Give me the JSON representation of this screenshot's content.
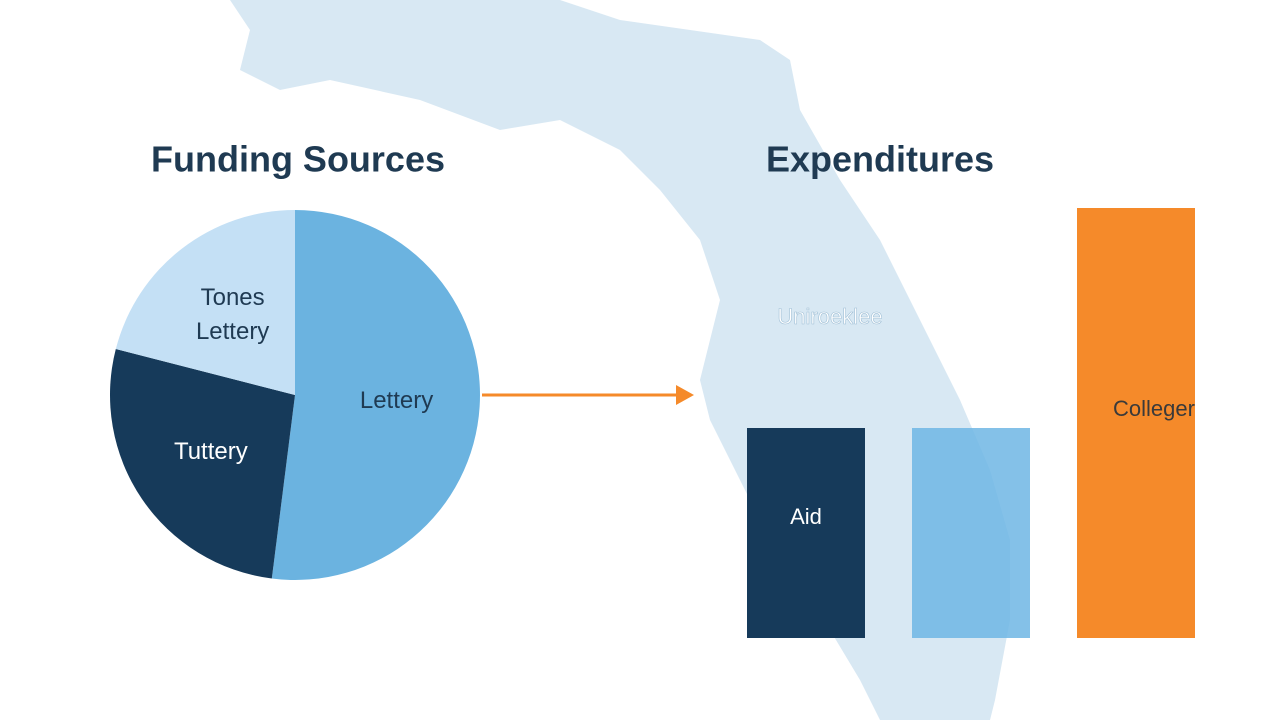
{
  "chart_data": [
    {
      "type": "pie",
      "title": "Funding Sources",
      "categories": [
        "Lettery",
        "Tuttery",
        "Tones Lettery"
      ],
      "values": [
        52,
        27,
        21
      ],
      "colors": [
        "#6bb3e0",
        "#163a5a",
        "#c4e0f5"
      ]
    },
    {
      "type": "bar",
      "title": "Expenditures",
      "categories": [
        "Aid",
        null,
        "Colleger"
      ],
      "values": [
        21,
        21,
        43
      ],
      "colors": [
        "#163a5a",
        "#6fb6e4",
        "#f58a2a"
      ],
      "annotation": "Uniroeklee"
    }
  ]
}
